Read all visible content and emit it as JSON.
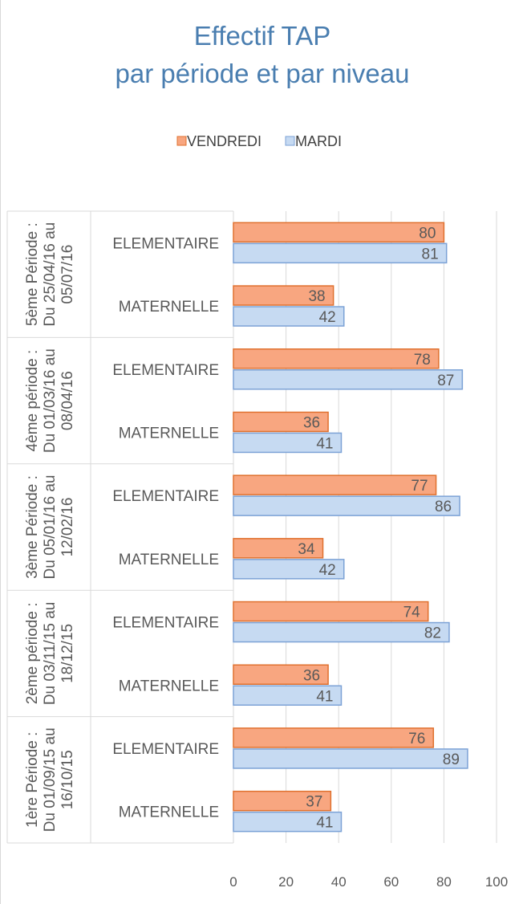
{
  "chart_data": {
    "type": "bar",
    "orientation": "horizontal",
    "title": [
      "Effectif TAP",
      "par période et par niveau"
    ],
    "legend": {
      "placement": "top",
      "entries": [
        "VENDREDI",
        "MARDI"
      ]
    },
    "groups": [
      {
        "label": [
          "5ème Période :",
          "Du 25/04/16 au",
          "05/07/16"
        ],
        "categories": [
          {
            "label": "ELEMENTAIRE",
            "vendredi": 80,
            "mardi": 81
          },
          {
            "label": "MATERNELLE",
            "vendredi": 38,
            "mardi": 42
          }
        ]
      },
      {
        "label": [
          "4ème période :",
          "Du 01/03/16 au",
          "08/04/16"
        ],
        "categories": [
          {
            "label": "ELEMENTAIRE",
            "vendredi": 78,
            "mardi": 87
          },
          {
            "label": "MATERNELLE",
            "vendredi": 36,
            "mardi": 41
          }
        ]
      },
      {
        "label": [
          "3ème Période :",
          "Du 05/01/16 au",
          "12/02/16"
        ],
        "categories": [
          {
            "label": "ELEMENTAIRE",
            "vendredi": 77,
            "mardi": 86
          },
          {
            "label": "MATERNELLE",
            "vendredi": 34,
            "mardi": 42
          }
        ]
      },
      {
        "label": [
          "2ème période :",
          "Du 03/11/15 au",
          "18/12/15"
        ],
        "categories": [
          {
            "label": "ELEMENTAIRE",
            "vendredi": 74,
            "mardi": 82
          },
          {
            "label": "MATERNELLE",
            "vendredi": 36,
            "mardi": 41
          }
        ]
      },
      {
        "label": [
          "1ère Période :",
          "Du 01/09/15 au",
          "16/10/15"
        ],
        "categories": [
          {
            "label": "ELEMENTAIRE",
            "vendredi": 76,
            "mardi": 89
          },
          {
            "label": "MATERNELLE",
            "vendredi": 37,
            "mardi": 41
          }
        ]
      }
    ],
    "xlim": [
      0,
      100
    ],
    "xticks": [
      0,
      20,
      40,
      60,
      80,
      100
    ],
    "grid": true,
    "colors": {
      "vendredi_fill": "#f8a680",
      "vendredi_stroke": "#e0712f",
      "mardi_fill": "#c6daf2",
      "mardi_stroke": "#7ca2d6",
      "title": "#4a7eb0",
      "grid": "#d9d9d9"
    }
  }
}
